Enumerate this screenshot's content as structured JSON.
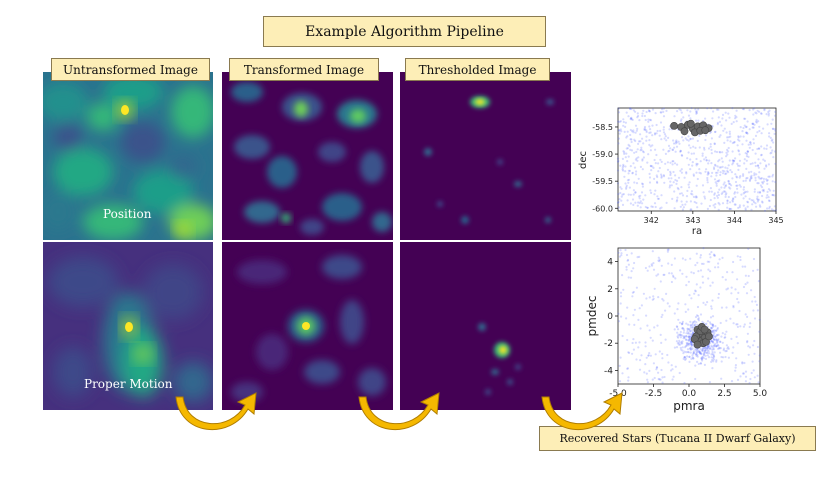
{
  "title": "Example Algorithm Pipeline",
  "columns": [
    {
      "label": "Untransformed Image"
    },
    {
      "label": "Transformed Image"
    },
    {
      "label": "Thresholded Image"
    }
  ],
  "overlays": {
    "position": "Position",
    "proper_motion": "Proper Motion"
  },
  "result_label": "Recovered Stars (Tucana II Dwarf Galaxy)",
  "colors": {
    "viridis_dark": "#440154",
    "viridis_mid": "#21908d",
    "viridis_yellow": "#fde725",
    "label_fill": "#fdeeb7",
    "arrow": "#f5b800",
    "scatter_bg": "#4a5cff",
    "scatter_hit": "#666666"
  },
  "chart_data": [
    {
      "type": "scatter",
      "xlabel": "ra",
      "ylabel": "dec",
      "xlim": [
        341.2,
        345.0
      ],
      "ylim": [
        -60.05,
        -58.15
      ],
      "xticks": [
        "342",
        "343",
        "344",
        "345"
      ],
      "yticks": [
        "-58.5",
        "-59.0",
        "-59.5",
        "-60.0"
      ],
      "xtick_values": [
        342,
        343,
        344,
        345
      ],
      "ytick_values": [
        -58.5,
        -59.0,
        -59.5,
        -60.0
      ],
      "recovered": [
        [
          342.55,
          -58.48
        ],
        [
          342.72,
          -58.5
        ],
        [
          342.88,
          -58.46
        ],
        [
          343.0,
          -58.53
        ],
        [
          343.12,
          -58.49
        ],
        [
          343.25,
          -58.47
        ],
        [
          343.38,
          -58.52
        ],
        [
          342.8,
          -58.58
        ],
        [
          343.05,
          -58.6
        ],
        [
          343.18,
          -58.57
        ],
        [
          342.95,
          -58.44
        ],
        [
          343.3,
          -58.56
        ]
      ]
    },
    {
      "type": "scatter",
      "xlabel": "pmra",
      "ylabel": "pmdec",
      "xlim": [
        -5.0,
        5.0
      ],
      "ylim": [
        -5.0,
        5.0
      ],
      "xticks": [
        "-5.0",
        "-2.5",
        "0.0",
        "2.5",
        "5.0"
      ],
      "yticks": [
        "4",
        "2",
        "0",
        "-2",
        "-4"
      ],
      "xtick_values": [
        -5.0,
        -2.5,
        0.0,
        2.5,
        5.0
      ],
      "ytick_values": [
        4,
        2,
        0,
        -2,
        -4
      ],
      "recovered": [
        [
          0.6,
          -1.0
        ],
        [
          0.9,
          -1.3
        ],
        [
          1.1,
          -1.6
        ],
        [
          0.7,
          -1.8
        ],
        [
          1.3,
          -1.2
        ],
        [
          0.5,
          -1.5
        ],
        [
          1.0,
          -2.0
        ],
        [
          0.8,
          -1.1
        ],
        [
          1.2,
          -1.9
        ],
        [
          0.4,
          -1.7
        ],
        [
          1.4,
          -1.5
        ],
        [
          0.9,
          -0.8
        ],
        [
          0.6,
          -2.1
        ],
        [
          1.1,
          -1.0
        ]
      ]
    }
  ]
}
